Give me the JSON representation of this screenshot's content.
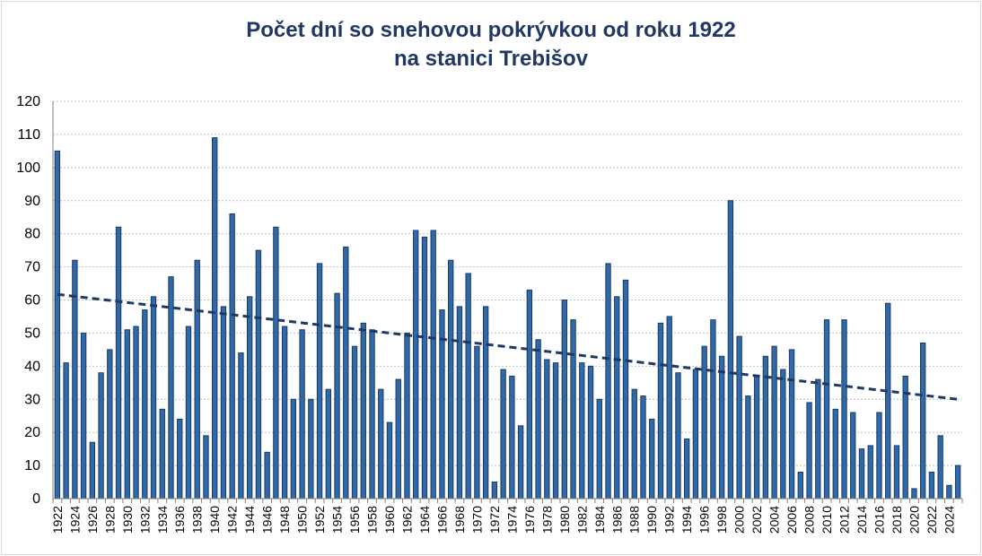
{
  "chart_data": {
    "type": "bar",
    "title_line1": "Počet dní so snehovou pokrývkou od roku 1922",
    "title_line2": "na stanici Trebišov",
    "xlabel": "",
    "ylabel": "",
    "ylim": [
      0,
      120
    ],
    "yticks": [
      0,
      10,
      20,
      30,
      40,
      50,
      60,
      70,
      80,
      90,
      100,
      110,
      120
    ],
    "grid": true,
    "x_start": 1922,
    "categories": [
      "1922",
      "1923",
      "1924",
      "1925",
      "1926",
      "1927",
      "1928",
      "1929",
      "1930",
      "1931",
      "1932",
      "1933",
      "1934",
      "1935",
      "1936",
      "1937",
      "1938",
      "1939",
      "1940",
      "1941",
      "1942",
      "1943",
      "1944",
      "1945",
      "1946",
      "1947",
      "1948",
      "1949",
      "1950",
      "1951",
      "1952",
      "1953",
      "1954",
      "1955",
      "1956",
      "1957",
      "1958",
      "1959",
      "1960",
      "1961",
      "1962",
      "1963",
      "1964",
      "1965",
      "1966",
      "1967",
      "1968",
      "1969",
      "1970",
      "1971",
      "1972",
      "1973",
      "1974",
      "1975",
      "1976",
      "1977",
      "1978",
      "1979",
      "1980",
      "1981",
      "1982",
      "1983",
      "1984",
      "1985",
      "1986",
      "1987",
      "1988",
      "1989",
      "1990",
      "1991",
      "1992",
      "1993",
      "1994",
      "1995",
      "1996",
      "1997",
      "1998",
      "1999",
      "2000",
      "2001",
      "2002",
      "2003",
      "2004",
      "2005",
      "2006",
      "2007",
      "2008",
      "2009",
      "2010",
      "2011",
      "2012",
      "2013",
      "2014",
      "2015",
      "2016",
      "2017",
      "2018",
      "2019",
      "2020",
      "2021",
      "2022",
      "2023",
      "2024",
      "2025"
    ],
    "xtick_labels": [
      "1922",
      "1924",
      "1926",
      "1928",
      "1930",
      "1932",
      "1934",
      "1936",
      "1938",
      "1940",
      "1942",
      "1944",
      "1946",
      "1948",
      "1950",
      "1952",
      "1954",
      "1956",
      "1958",
      "1960",
      "1962",
      "1964",
      "1966",
      "1968",
      "1970",
      "1972",
      "1974",
      "1976",
      "1978",
      "1980",
      "1982",
      "1984",
      "1986",
      "1988",
      "1990",
      "1992",
      "1994",
      "1996",
      "1998",
      "2000",
      "2002",
      "2004",
      "2006",
      "2008",
      "2010",
      "2012",
      "2014",
      "2016",
      "2018",
      "2020",
      "2022",
      "2024"
    ],
    "values": [
      105,
      41,
      72,
      50,
      17,
      38,
      45,
      82,
      51,
      52,
      57,
      61,
      27,
      67,
      24,
      52,
      72,
      19,
      109,
      58,
      86,
      44,
      61,
      75,
      14,
      82,
      52,
      30,
      51,
      30,
      71,
      33,
      62,
      76,
      46,
      53,
      51,
      33,
      23,
      36,
      50,
      81,
      79,
      81,
      57,
      72,
      58,
      68,
      46,
      58,
      5,
      39,
      37,
      22,
      63,
      48,
      42,
      41,
      60,
      54,
      41,
      40,
      30,
      71,
      61,
      66,
      33,
      31,
      24,
      53,
      55,
      38,
      18,
      39,
      46,
      54,
      43,
      90,
      49,
      31,
      37,
      43,
      46,
      39,
      45,
      8,
      29,
      36,
      54,
      27,
      54,
      26,
      15,
      16,
      26,
      59,
      16,
      37,
      3,
      47,
      8,
      19,
      4,
      10
    ],
    "trendline": {
      "type": "linear",
      "start": 61.7,
      "end": 30.0
    },
    "colors": {
      "bar_fill": "#2e6aa8",
      "bar_stroke": "#1f3864",
      "trend": "#1f3864",
      "grid": "#bfbfbf",
      "title": "#1f3864"
    }
  }
}
